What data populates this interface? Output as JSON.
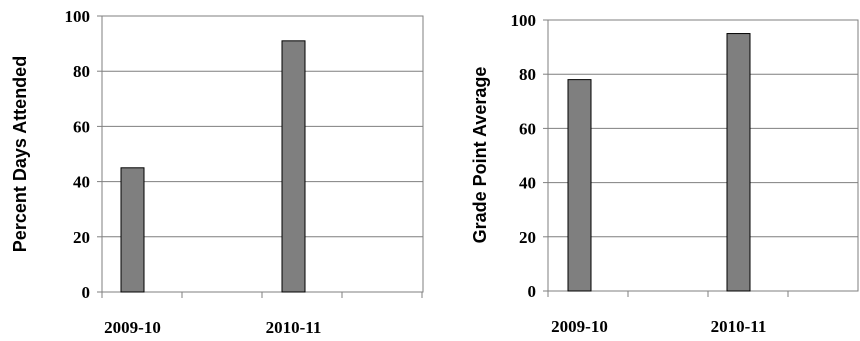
{
  "chart_data": [
    {
      "type": "bar",
      "categories": [
        "2009-10",
        "2010-11"
      ],
      "values": [
        45,
        91
      ],
      "ylabel": "Percent Days Attended",
      "xlabel": "",
      "ylim": [
        0,
        100
      ],
      "yticks": [
        0,
        20,
        40,
        60,
        80,
        100
      ],
      "grid": true,
      "bar_color": "#7f7f7f"
    },
    {
      "type": "bar",
      "categories": [
        "2009-10",
        "2010-11"
      ],
      "values": [
        78,
        95
      ],
      "ylabel": "Grade Point Average",
      "xlabel": "",
      "ylim": [
        0,
        100
      ],
      "yticks": [
        0,
        20,
        40,
        60,
        80,
        100
      ],
      "grid": true,
      "bar_color": "#7f7f7f"
    }
  ]
}
